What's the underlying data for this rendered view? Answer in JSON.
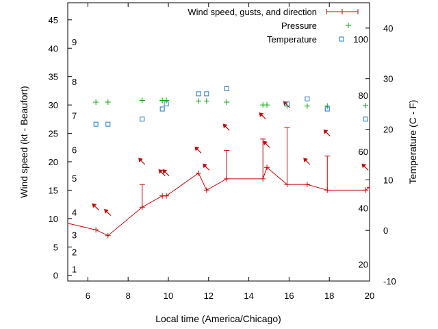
{
  "chart_data": {
    "type": "line",
    "xlabel": "Local time (America/Chicago)",
    "ylabel_left": "Wind speed (kt - Beaufort)",
    "ylabel_right": "Temperature (C - F)",
    "x_range": [
      5,
      20
    ],
    "y_left_range": [
      -1,
      48
    ],
    "y_right_range": [
      -10,
      45
    ],
    "x_ticks": [
      "6",
      "8",
      "10",
      "12",
      "14",
      "16",
      "18",
      "20"
    ],
    "y_left_ticks": [
      "0",
      "5",
      "10",
      "15",
      "20",
      "25",
      "30",
      "35",
      "40",
      "45"
    ],
    "y_right_ticks": [
      "-10",
      "0",
      "10",
      "20",
      "30",
      "40"
    ],
    "beaufort_labels": [
      {
        "label": "1",
        "value": 1
      },
      {
        "label": "2",
        "value": 4
      },
      {
        "label": "3",
        "value": 7
      },
      {
        "label": "4",
        "value": 11
      },
      {
        "label": "5",
        "value": 17
      },
      {
        "label": "6",
        "value": 22
      },
      {
        "label": "7",
        "value": 28
      },
      {
        "label": "8",
        "value": 34
      },
      {
        "label": "9",
        "value": 41
      }
    ],
    "fahrenheit_labels": [
      {
        "label": "20",
        "value": -6.7
      },
      {
        "label": "40",
        "value": 4.4
      },
      {
        "label": "60",
        "value": 15.6
      },
      {
        "label": "80",
        "value": 26.7
      },
      {
        "label": "100",
        "value": 37.8
      }
    ],
    "legend": [
      {
        "name": "Wind speed, gusts, and direction",
        "color": "#cc0000",
        "marker": "line-plus"
      },
      {
        "name": "Pressure",
        "color": "#00aa00",
        "marker": "plus"
      },
      {
        "name": "Temperature",
        "color": "#1e7ac8",
        "marker": "square"
      }
    ],
    "series": [
      {
        "name": "Wind speed, gusts, and direction",
        "axis": "left",
        "color": "#cc0000",
        "points": [
          {
            "x": 4.0,
            "y": 10
          },
          {
            "x": 6.4,
            "y": 8
          },
          {
            "x": 7.0,
            "y": 7
          },
          {
            "x": 8.7,
            "y": 12,
            "gust": 16
          },
          {
            "x": 9.7,
            "y": 14
          },
          {
            "x": 9.9,
            "y": 14
          },
          {
            "x": 11.5,
            "y": 18
          },
          {
            "x": 11.9,
            "y": 15
          },
          {
            "x": 12.9,
            "y": 17,
            "gust": 22
          },
          {
            "x": 14.7,
            "y": 17,
            "gust": 24
          },
          {
            "x": 14.9,
            "y": 19
          },
          {
            "x": 15.9,
            "y": 16,
            "gust": 26
          },
          {
            "x": 16.9,
            "y": 16
          },
          {
            "x": 17.9,
            "y": 15,
            "gust": 21
          },
          {
            "x": 19.8,
            "y": 15
          },
          {
            "x": 20.0,
            "y": 15.5
          }
        ]
      },
      {
        "name": "Wind direction arrows",
        "axis": "left",
        "color": "#cc0000",
        "points": [
          {
            "x": 6.4,
            "y": 12
          },
          {
            "x": 7.0,
            "y": 11
          },
          {
            "x": 8.7,
            "y": 20
          },
          {
            "x": 9.7,
            "y": 18
          },
          {
            "x": 9.9,
            "y": 18
          },
          {
            "x": 11.5,
            "y": 22
          },
          {
            "x": 11.9,
            "y": 19
          },
          {
            "x": 12.9,
            "y": 26
          },
          {
            "x": 14.7,
            "y": 28
          },
          {
            "x": 14.9,
            "y": 23
          },
          {
            "x": 15.9,
            "y": 30
          },
          {
            "x": 16.9,
            "y": 20
          },
          {
            "x": 17.9,
            "y": 25
          },
          {
            "x": 19.8,
            "y": 19
          }
        ]
      },
      {
        "name": "Pressure",
        "axis": "left",
        "color": "#00aa00",
        "points": [
          {
            "x": 6.4,
            "y": 30.5
          },
          {
            "x": 7.0,
            "y": 30.5
          },
          {
            "x": 8.7,
            "y": 30.8
          },
          {
            "x": 9.7,
            "y": 30.8
          },
          {
            "x": 9.9,
            "y": 30.8
          },
          {
            "x": 11.5,
            "y": 30.7
          },
          {
            "x": 11.9,
            "y": 30.7
          },
          {
            "x": 12.9,
            "y": 30.5
          },
          {
            "x": 14.7,
            "y": 30.0
          },
          {
            "x": 14.9,
            "y": 30.0
          },
          {
            "x": 15.9,
            "y": 29.8
          },
          {
            "x": 16.9,
            "y": 29.8
          },
          {
            "x": 17.9,
            "y": 29.8
          },
          {
            "x": 19.8,
            "y": 29.9
          }
        ]
      },
      {
        "name": "Temperature",
        "axis": "right",
        "color": "#1e7ac8",
        "points": [
          {
            "x": 6.4,
            "y": 21
          },
          {
            "x": 7.0,
            "y": 21
          },
          {
            "x": 8.7,
            "y": 22
          },
          {
            "x": 9.7,
            "y": 24
          },
          {
            "x": 9.9,
            "y": 25
          },
          {
            "x": 11.5,
            "y": 27
          },
          {
            "x": 11.9,
            "y": 27
          },
          {
            "x": 12.9,
            "y": 28
          },
          {
            "x": 15.9,
            "y": 25
          },
          {
            "x": 16.9,
            "y": 26
          },
          {
            "x": 17.9,
            "y": 24
          },
          {
            "x": 19.8,
            "y": 22
          }
        ]
      }
    ]
  }
}
